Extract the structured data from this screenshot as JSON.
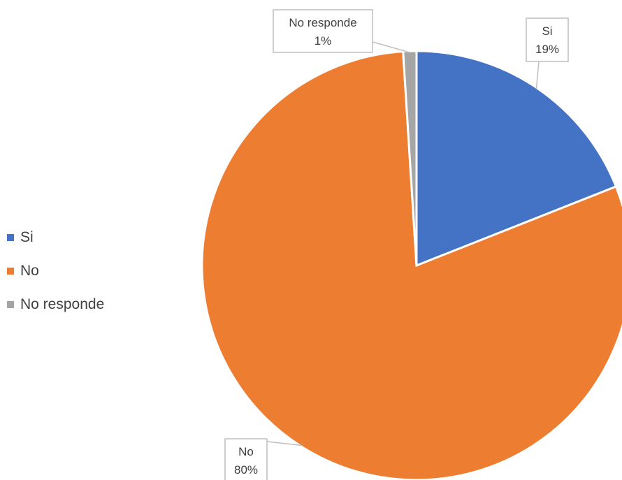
{
  "chart_data": {
    "type": "pie",
    "title": "",
    "categories": [
      "Si",
      "No",
      "No responde"
    ],
    "values": [
      19,
      80,
      1
    ],
    "labels": [
      "19%",
      "80%",
      "1%"
    ],
    "colors": [
      "#4472C4",
      "#ED7D31",
      "#A5A5A5"
    ],
    "legend_position": "left",
    "data_labels": "callout boxes with category and percentage"
  }
}
